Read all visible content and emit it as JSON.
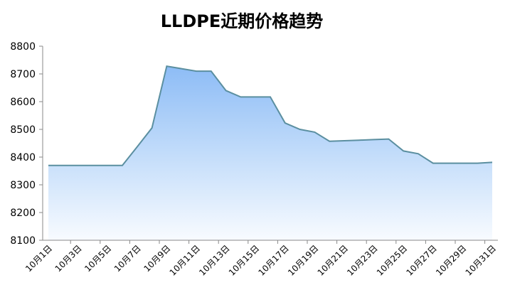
{
  "chart_data": {
    "type": "area",
    "title": "LLDPE近期价格趋势",
    "categories": [
      "10月1日",
      null,
      "10月3日",
      null,
      "10月5日",
      null,
      "10月7日",
      null,
      "10月9日",
      null,
      "10月11日",
      null,
      "10月13日",
      null,
      "10月15日",
      null,
      "10月17日",
      null,
      "10月19日",
      null,
      "10月21日",
      null,
      "10月23日",
      null,
      "10月25日",
      null,
      "10月27日",
      null,
      "10月29日",
      null,
      "10月31日"
    ],
    "values": [
      8370,
      8370,
      8370,
      8370,
      8370,
      8370,
      8437,
      8505,
      8728,
      8719,
      8710,
      8710,
      8640,
      8617,
      8617,
      8617,
      8523,
      8500,
      8490,
      8457,
      8459,
      8461,
      8463,
      8465,
      8422,
      8412,
      8378,
      8378,
      8378,
      8378,
      8381
    ],
    "color": "#5b8fa0",
    "ylim": [
      8100,
      8800
    ],
    "yticks": [
      8100,
      8200,
      8300,
      8400,
      8500,
      8600,
      8700,
      8800
    ],
    "grid": false
  }
}
